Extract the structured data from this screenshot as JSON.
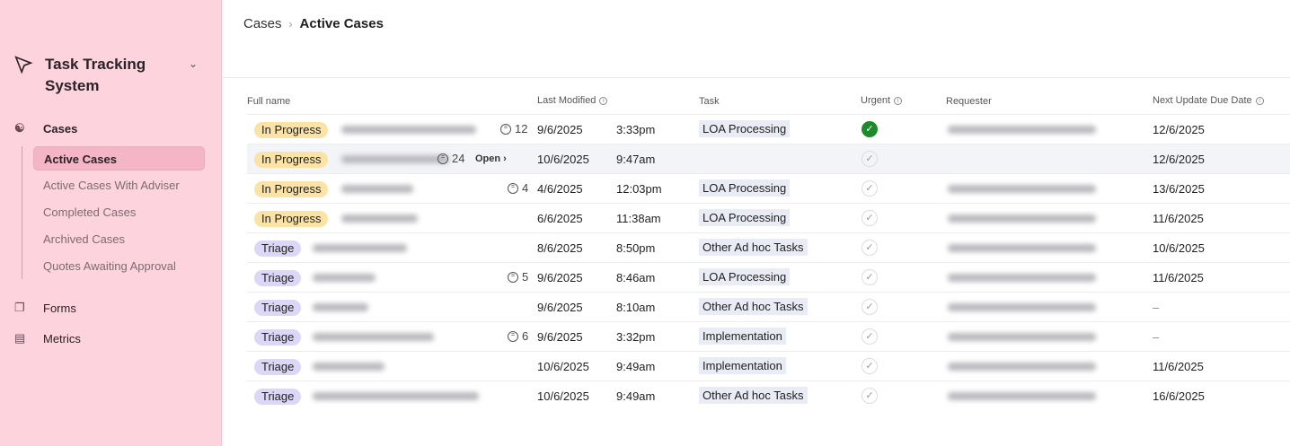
{
  "sidebar": {
    "app_title": "Task Tracking System",
    "nav": [
      {
        "label": "Cases",
        "icon": "users-icon"
      },
      {
        "label": "Forms",
        "icon": "copy-icon"
      },
      {
        "label": "Metrics",
        "icon": "bar-chart-icon"
      }
    ],
    "sub_items": [
      "Active Cases",
      "Active Cases With Adviser",
      "Completed Cases",
      "Archived Cases",
      "Quotes Awaiting Approval"
    ]
  },
  "breadcrumb": [
    "Cases",
    "Active Cases"
  ],
  "columns": [
    "Full name",
    "Last Modified",
    "Task",
    "Urgent",
    "Requester",
    "Next Update Due Date"
  ],
  "open_label": "Open",
  "colors": {
    "in_progress": "#fbe3a6",
    "triage": "#ddd7f7",
    "urgent": "#1e8a2c",
    "sidebar": "#fdd3de"
  },
  "rows": [
    {
      "status": "In Progress",
      "comments": "12",
      "date": "9/6/2025",
      "time": "3:33pm",
      "task": "LOA Processing",
      "urgent": true,
      "next": "12/6/2025"
    },
    {
      "status": "In Progress",
      "comments": "24",
      "date": "10/6/2025",
      "time": "9:47am",
      "task": "",
      "urgent": false,
      "next": "12/6/2025",
      "hover": true
    },
    {
      "status": "In Progress",
      "comments": "4",
      "date": "4/6/2025",
      "time": "12:03pm",
      "task": "LOA Processing",
      "urgent": false,
      "next": "13/6/2025"
    },
    {
      "status": "In Progress",
      "comments": "",
      "date": "6/6/2025",
      "time": "11:38am",
      "task": "LOA Processing",
      "urgent": false,
      "next": "11/6/2025"
    },
    {
      "status": "Triage",
      "comments": "",
      "date": "8/6/2025",
      "time": "8:50pm",
      "task": "Other Ad hoc Tasks",
      "urgent": false,
      "next": "10/6/2025"
    },
    {
      "status": "Triage",
      "comments": "5",
      "date": "9/6/2025",
      "time": "8:46am",
      "task": "LOA Processing",
      "urgent": false,
      "next": "11/6/2025"
    },
    {
      "status": "Triage",
      "comments": "",
      "date": "9/6/2025",
      "time": "8:10am",
      "task": "Other Ad hoc Tasks",
      "urgent": false,
      "next": "–"
    },
    {
      "status": "Triage",
      "comments": "6",
      "date": "9/6/2025",
      "time": "3:32pm",
      "task": "Implementation",
      "urgent": false,
      "next": "–"
    },
    {
      "status": "Triage",
      "comments": "",
      "date": "10/6/2025",
      "time": "9:49am",
      "task": "Implementation",
      "urgent": false,
      "next": "11/6/2025"
    },
    {
      "status": "Triage",
      "comments": "",
      "date": "10/6/2025",
      "time": "9:49am",
      "task": "Other Ad hoc Tasks",
      "urgent": false,
      "next": "16/6/2025"
    }
  ]
}
